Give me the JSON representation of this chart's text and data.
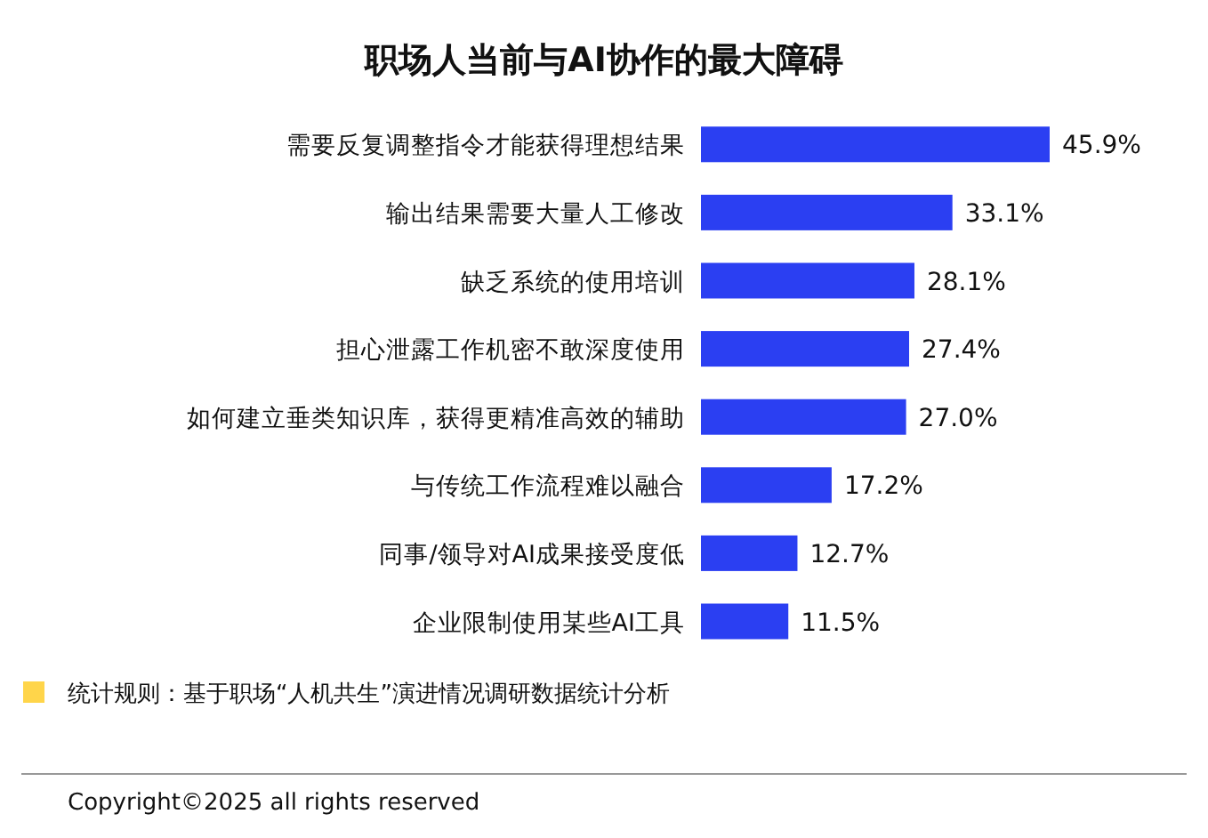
{
  "chart_data": {
    "type": "bar",
    "orientation": "horizontal",
    "title": "职场人当前与AI协作的最大障碍",
    "categories": [
      "需要反复调整指令才能获得理想结果",
      "输出结果需要大量人工修改",
      "缺乏系统的使用培训",
      "担心泄露工作机密不敢深度使用",
      "如何建立垂类知识库，获得更精准高效的辅助",
      "与传统工作流程难以融合",
      "同事/领导对AI成果接受度低",
      "企业限制使用某些AI工具"
    ],
    "values": [
      45.9,
      33.1,
      28.1,
      27.4,
      27.0,
      17.2,
      12.7,
      11.5
    ],
    "value_labels": [
      "45.9%",
      "33.1%",
      "28.1%",
      "27.4%",
      "27.0%",
      "17.2%",
      "12.7%",
      "11.5%"
    ],
    "color": "#2b3ff2",
    "annotations": [
      "统计规则：基于职场“人机共生”演进情况调研数据统计分析",
      "Copyright©2025 all rights reserved"
    ]
  }
}
